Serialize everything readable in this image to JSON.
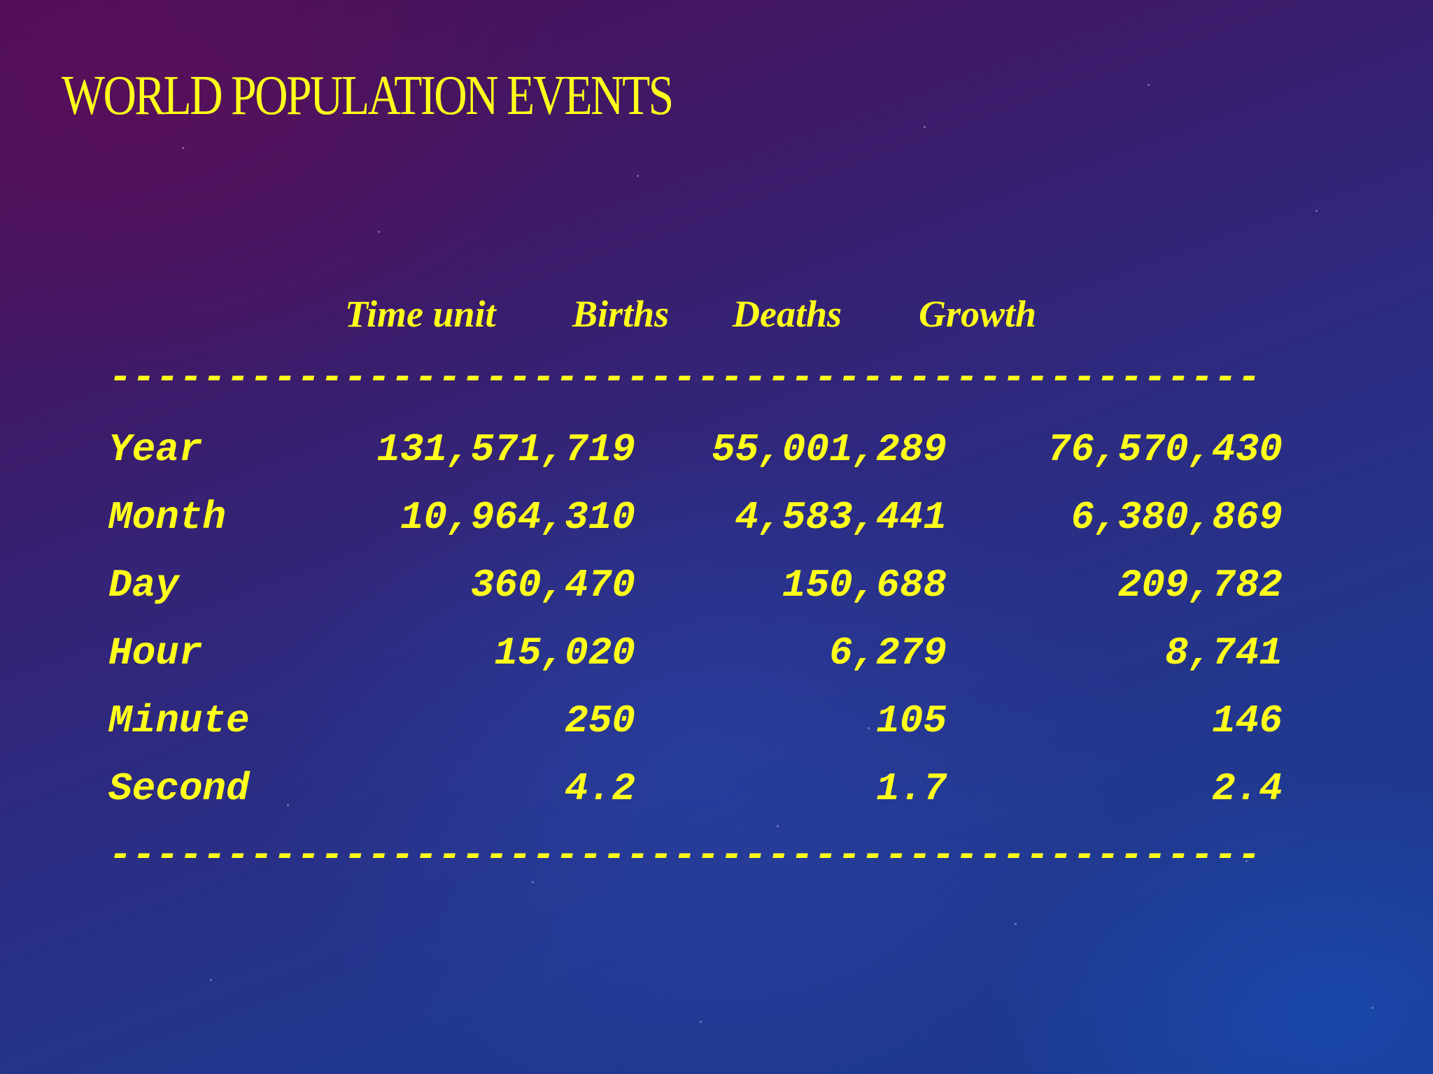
{
  "slide": {
    "title": "WORLD POPULATION EVENTS"
  },
  "table": {
    "headers": [
      "Time unit",
      "Births",
      "Deaths",
      "Growth"
    ],
    "divider": "-------------------------------------------------",
    "rows": [
      {
        "unit": "Year",
        "births": "131,571,719",
        "deaths": "55,001,289",
        "growth": "76,570,430"
      },
      {
        "unit": "Month",
        "births": "10,964,310",
        "deaths": "4,583,441",
        "growth": "6,380,869"
      },
      {
        "unit": "Day",
        "births": "360,470",
        "deaths": "150,688",
        "growth": "209,782"
      },
      {
        "unit": "Hour",
        "births": "15,020",
        "deaths": "6,279",
        "growth": "8,741"
      },
      {
        "unit": "Minute",
        "births": "250",
        "deaths": "105",
        "growth": "146"
      },
      {
        "unit": "Second",
        "births": "4.2",
        "deaths": "1.7",
        "growth": "2.4"
      }
    ]
  },
  "colors": {
    "text": "#ffff1a",
    "background_top": "#4a0e55",
    "background_bottom": "#1a3a8e"
  }
}
